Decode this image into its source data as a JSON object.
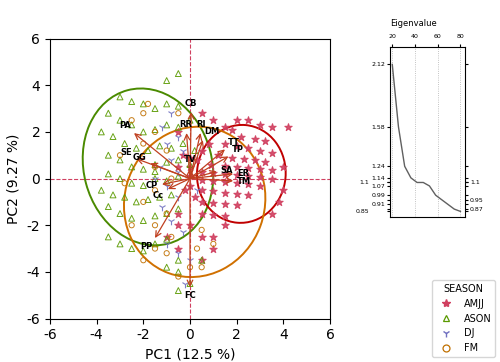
{
  "chart_data": [
    {
      "type": "scatter",
      "xlabel": "PC1 (12.5 %)",
      "ylabel": "PC2 (9.27 %)",
      "xlim": [
        -6,
        6
      ],
      "ylim": [
        -6,
        6
      ],
      "xticks": [
        -6,
        -4,
        -2,
        0,
        2,
        4,
        6
      ],
      "yticks": [
        -6,
        -4,
        -2,
        0,
        2,
        4,
        6
      ],
      "legend": "lower right",
      "legend_title": "SEASON",
      "series": [
        {
          "name": "AMJJ",
          "color": "#d04060",
          "marker": "star",
          "x": [
            2.5,
            3.0,
            3.5,
            4.2,
            1.8,
            2.2,
            2.8,
            3.2,
            1.5,
            2.0,
            2.5,
            3.0,
            3.5,
            1.2,
            1.8,
            2.3,
            2.8,
            3.2,
            0.9,
            1.5,
            2.0,
            2.5,
            3.0,
            3.5,
            0.5,
            1.0,
            1.5,
            2.0,
            2.5,
            3.0,
            3.5,
            0.5,
            1.0,
            1.5,
            2.0,
            2.5,
            3.0,
            0.5,
            1.0,
            1.5,
            2.0,
            2.5,
            0.5,
            1.0,
            1.5,
            2.0,
            0.5,
            1.0,
            1.5,
            0.0,
            0.0,
            0.0,
            0.0,
            -0.3,
            -0.5,
            -0.2,
            0.8,
            0.5,
            0.3,
            0.2,
            -0.5,
            -0.5,
            0.0,
            0.5,
            1.0,
            1.5,
            0.5,
            1.0,
            1.5,
            2.0,
            -0.5,
            4.0,
            4.0,
            3.8,
            3.5,
            -0.5,
            -1.0,
            0.5,
            1.0
          ],
          "values": [
            2.5,
            2.3,
            2.2,
            2.2,
            2.1,
            1.8,
            1.7,
            1.6,
            1.5,
            1.4,
            1.3,
            1.2,
            1.1,
            1.0,
            0.9,
            0.85,
            0.8,
            0.7,
            0.6,
            0.55,
            0.5,
            0.45,
            0.4,
            0.35,
            0.3,
            0.25,
            0.2,
            0.15,
            0.1,
            0.05,
            0.0,
            -0.05,
            -0.1,
            -0.15,
            -0.2,
            -0.25,
            -0.3,
            -0.5,
            -0.55,
            -0.6,
            -0.65,
            -0.7,
            -1.0,
            -1.05,
            -1.1,
            -1.15,
            -1.5,
            -1.55,
            -1.6,
            0.9,
            0.5,
            0.1,
            -0.3,
            1.0,
            0.5,
            -0.5,
            1.5,
            1.2,
            0.8,
            -0.8,
            -1.5,
            -2.0,
            -2.0,
            -2.5,
            -2.5,
            -2.0,
            2.8,
            2.5,
            2.2,
            2.5,
            2.0,
            0.5,
            -0.5,
            -1.0,
            -1.5,
            -3.0,
            -2.5,
            -3.5,
            -3.0
          ]
        },
        {
          "name": "ASON",
          "color": "#5a9a00",
          "marker": "triangle_open",
          "x": [
            -3.0,
            -2.5,
            -2.0,
            -1.5,
            -1.0,
            -0.5,
            -3.5,
            -3.0,
            -2.5,
            -2.0,
            -1.5,
            -1.0,
            -0.5,
            0.0,
            -3.8,
            -3.3,
            -2.8,
            -2.3,
            -1.8,
            -1.3,
            -0.8,
            -0.3,
            0.2,
            -3.5,
            -3.0,
            -2.5,
            -2.0,
            -1.5,
            -1.0,
            -0.5,
            0.0,
            -3.5,
            -3.0,
            -2.5,
            -2.0,
            -1.5,
            -1.0,
            -0.5,
            -3.8,
            -3.3,
            -2.8,
            -2.3,
            -1.8,
            -1.3,
            -0.8,
            -3.5,
            -3.0,
            -2.5,
            -2.0,
            -1.5,
            -1.0,
            -0.5,
            -3.5,
            -3.0,
            -2.5,
            -2.0,
            -1.5,
            -1.0,
            -0.5,
            -0.5,
            -1.0,
            -0.5,
            -1.0,
            0.0,
            -0.5,
            -1.5,
            0.5
          ],
          "values": [
            3.5,
            3.3,
            3.2,
            3.0,
            3.2,
            3.1,
            2.8,
            2.5,
            2.3,
            2.0,
            2.1,
            2.3,
            2.2,
            2.5,
            2.0,
            1.8,
            1.5,
            1.3,
            1.2,
            1.4,
            1.3,
            1.5,
            1.2,
            1.0,
            0.8,
            0.5,
            0.4,
            0.6,
            0.7,
            0.8,
            0.6,
            0.2,
            0.0,
            -0.2,
            -0.3,
            0.0,
            -0.1,
            0.1,
            -0.5,
            -0.7,
            -0.8,
            -1.0,
            -0.9,
            -0.8,
            -0.7,
            -1.2,
            -1.5,
            -1.7,
            -1.8,
            -1.6,
            -1.5,
            -1.3,
            -2.5,
            -2.8,
            -3.0,
            -3.1,
            -2.8,
            -2.6,
            -3.5,
            -4.0,
            -3.8,
            4.5,
            4.2,
            -4.5,
            -4.8,
            0.3,
            -3.5
          ]
        },
        {
          "name": "DJ",
          "color": "#7070c0",
          "marker": "tri_down",
          "x": [
            -0.8,
            -1.2,
            -0.5,
            -1.0,
            -0.3,
            -0.8,
            -1.3,
            -0.5,
            -1.0,
            -0.5,
            -1.2,
            -0.8,
            -0.3,
            -1.0,
            -0.5,
            0.0,
            -1.5,
            -0.2,
            0.3
          ],
          "values": [
            2.8,
            2.2,
            1.8,
            1.5,
            1.2,
            0.8,
            0.5,
            0.3,
            -0.3,
            -0.8,
            -1.2,
            -1.8,
            -2.3,
            -2.8,
            -3.2,
            -3.5,
            0.0,
            -4.5,
            -0.5
          ]
        },
        {
          "name": "FM",
          "color": "#c07000",
          "marker": "circle_open",
          "x": [
            -1.5,
            -2.0,
            -1.0,
            -1.5,
            -0.8,
            -1.5,
            -2.0,
            -1.0,
            -1.5,
            -0.8,
            -1.5,
            -2.0,
            -1.0,
            -0.5,
            -2.5,
            -2.0,
            -3.0,
            -2.8,
            -2.5,
            -1.8,
            0.0,
            0.3,
            -0.5,
            0.5,
            1.0,
            0.5
          ],
          "values": [
            2.0,
            1.5,
            1.2,
            0.5,
            0.0,
            -0.5,
            -1.0,
            -1.5,
            -2.0,
            -2.5,
            -3.0,
            -3.5,
            -3.2,
            2.8,
            2.5,
            2.8,
            1.0,
            -0.2,
            -2.0,
            3.2,
            -3.8,
            -3.0,
            -4.2,
            -2.2,
            -2.8,
            -3.8
          ]
        }
      ],
      "ellipses": [
        {
          "center": [
            -1.8,
            0.5
          ],
          "width": 5.5,
          "height": 6.8,
          "angle": 15,
          "color": "#4a8a00"
        },
        {
          "center": [
            2.2,
            0.2
          ],
          "width": 3.8,
          "height": 4.2,
          "angle": -5,
          "color": "#c00000"
        },
        {
          "center": [
            0.2,
            -1.0
          ],
          "width": 6.0,
          "height": 6.5,
          "angle": -20,
          "color": "#d07000"
        }
      ],
      "vectors": {
        "color": "#c04020",
        "names": [
          "CB",
          "RR",
          "RI",
          "DM",
          "PA",
          "SE",
          "GG",
          "TV",
          "TT",
          "TP",
          "SA",
          "ER",
          "CP",
          "Cc",
          "TM",
          "PP",
          "FC"
        ],
        "x": [
          0.05,
          -0.15,
          0.45,
          0.55,
          -2.4,
          -2.3,
          -1.7,
          0.0,
          1.5,
          1.65,
          1.15,
          1.85,
          -1.2,
          -0.95,
          1.85,
          -1.5,
          0.0
        ],
        "y": [
          2.85,
          1.95,
          1.95,
          1.65,
          1.95,
          0.85,
          0.65,
          0.45,
          1.25,
          0.95,
          0.3,
          0.2,
          -0.25,
          -0.45,
          -0.1,
          -2.55,
          -4.65
        ]
      },
      "reference_lines": {
        "x": [
          0
        ],
        "y": [
          0
        ],
        "color": "#d04060",
        "line_style": "dashed"
      }
    },
    {
      "type": "line",
      "title": "Eigenvalue",
      "x": [
        20.0,
        25.454545454545453,
        30.90909090909091,
        36.36363636363636,
        41.81818181818182,
        47.27272727272727,
        52.72727272727273,
        58.18181818181818,
        63.63636363636363,
        69.0909090909091,
        74.54545454545455,
        80.0
      ],
      "values": [
        2.12,
        1.58,
        1.24,
        1.14,
        1.1,
        1.1,
        1.07,
        0.99,
        0.95,
        0.91,
        0.87,
        0.85
      ],
      "color": "#606060",
      "xlim": [
        18,
        84
      ],
      "ylim": [
        0.8,
        2.27
      ],
      "xticks": [
        20,
        40,
        60,
        80
      ],
      "yticks": [
        2.12,
        1.58,
        1.24,
        1.14,
        1.1,
        1.1,
        1.07,
        0.99,
        0.95,
        0.91,
        0.87,
        0.85
      ],
      "grid": "x"
    }
  ]
}
